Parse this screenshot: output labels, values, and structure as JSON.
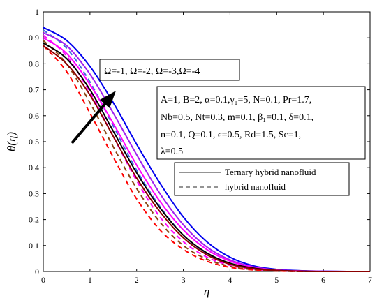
{
  "chart_data": {
    "type": "line",
    "xlabel": "η",
    "ylabel": "θ(η)",
    "xlim": [
      0,
      7
    ],
    "ylim": [
      0,
      1
    ],
    "xticks": [
      "0",
      "1",
      "2",
      "3",
      "4",
      "5",
      "6",
      "7"
    ],
    "yticks": [
      "0",
      "0.1",
      "0.2",
      "0.3",
      "0.4",
      "0.5",
      "0.6",
      "0.7",
      "0.8",
      "0.9",
      "1"
    ],
    "omega_annotation": "Ω=-1, Ω=-2, Ω=-3,Ω=-4",
    "parameter_box": [
      "A=1, B=2, α=0.1,γ₁=5, N=0.1, Pr=1.7,",
      "Nb=0.5, Nt=0.3, m=0.1, β₁=0.1, δ=0.1,",
      "n=0.1, Q=0.1, ϵ=0.5, Rd=1.5, Sc=1,",
      "λ=0.5"
    ],
    "legend": [
      {
        "label": "Ternary hybrid nanofluid",
        "style": "solid"
      },
      {
        "label": "hybrid nanofluid",
        "style": "dashed"
      }
    ],
    "x": [
      0,
      0.5,
      1,
      1.5,
      2,
      2.5,
      3,
      3.5,
      4,
      4.5,
      5,
      5.5,
      6,
      6.5,
      7
    ],
    "series": [
      {
        "group": "ternary",
        "color": "#0000ee",
        "dash": false,
        "values": [
          0.94,
          0.89,
          0.79,
          0.65,
          0.49,
          0.34,
          0.21,
          0.115,
          0.055,
          0.022,
          0.008,
          0.003,
          0.001,
          0.0,
          0.0
        ]
      },
      {
        "group": "ternary",
        "color": "#a020f0",
        "dash": false,
        "values": [
          0.92,
          0.87,
          0.76,
          0.61,
          0.45,
          0.3,
          0.18,
          0.095,
          0.045,
          0.018,
          0.006,
          0.002,
          0.001,
          0.0,
          0.0
        ]
      },
      {
        "group": "ternary",
        "color": "#ff00ff",
        "dash": false,
        "values": [
          0.9,
          0.84,
          0.72,
          0.57,
          0.41,
          0.27,
          0.16,
          0.085,
          0.04,
          0.016,
          0.005,
          0.002,
          0.0,
          0.0,
          0.0
        ]
      },
      {
        "group": "ternary",
        "color": "#000000",
        "dash": false,
        "values": [
          0.88,
          0.82,
          0.7,
          0.54,
          0.38,
          0.245,
          0.14,
          0.072,
          0.032,
          0.013,
          0.004,
          0.001,
          0.0,
          0.0,
          0.0
        ]
      },
      {
        "group": "ternary",
        "color": "#8b0000",
        "dash": false,
        "values": [
          0.87,
          0.8,
          0.68,
          0.52,
          0.36,
          0.23,
          0.13,
          0.065,
          0.028,
          0.011,
          0.004,
          0.001,
          0.0,
          0.0,
          0.0
        ]
      },
      {
        "group": "hybrid",
        "color": "#4169e1",
        "dash": true,
        "values": [
          0.93,
          0.86,
          0.73,
          0.56,
          0.39,
          0.25,
          0.14,
          0.07,
          0.03,
          0.011,
          0.004,
          0.001,
          0.0,
          0.0,
          0.0
        ]
      },
      {
        "group": "hybrid",
        "color": "#ff00ff",
        "dash": true,
        "values": [
          0.91,
          0.83,
          0.69,
          0.52,
          0.35,
          0.21,
          0.115,
          0.056,
          0.024,
          0.009,
          0.003,
          0.001,
          0.0,
          0.0,
          0.0
        ]
      },
      {
        "group": "hybrid",
        "color": "#8b4513",
        "dash": true,
        "values": [
          0.89,
          0.8,
          0.65,
          0.48,
          0.32,
          0.19,
          0.1,
          0.048,
          0.02,
          0.007,
          0.002,
          0.0,
          0.0,
          0.0,
          0.0
        ]
      },
      {
        "group": "hybrid",
        "color": "#ff0000",
        "dash": true,
        "values": [
          0.87,
          0.77,
          0.61,
          0.44,
          0.28,
          0.16,
          0.085,
          0.04,
          0.016,
          0.006,
          0.002,
          0.0,
          0.0,
          0.0,
          0.0
        ]
      }
    ]
  }
}
